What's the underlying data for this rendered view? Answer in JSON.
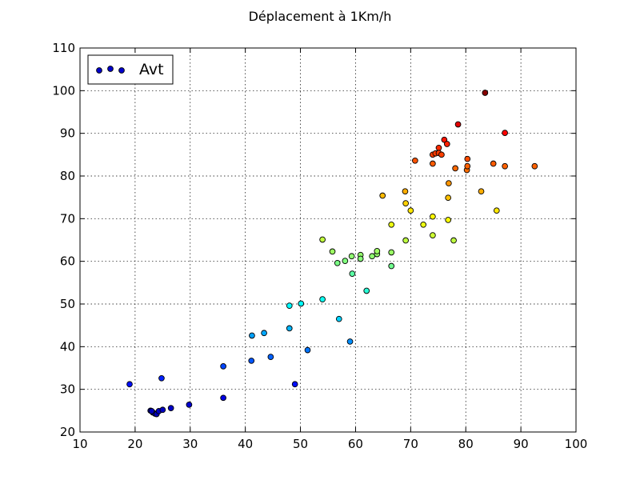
{
  "chart_data": {
    "type": "scatter",
    "title": "Déplacement à 1Km/h",
    "xlabel": "",
    "ylabel": "",
    "xlim": [
      10,
      100
    ],
    "ylim": [
      20,
      110
    ],
    "xticks": [
      10,
      20,
      30,
      40,
      50,
      60,
      70,
      80,
      90,
      100
    ],
    "yticks": [
      20,
      30,
      40,
      50,
      60,
      70,
      80,
      90,
      100,
      110
    ],
    "grid": true,
    "legend": {
      "placement": "top-left",
      "entries": [
        "Avt"
      ]
    },
    "colormap": "jet",
    "colormap_range": [
      20,
      100
    ],
    "series": [
      {
        "name": "Avt",
        "points": [
          [
            19.0,
            31.2
          ],
          [
            24.8,
            32.6
          ],
          [
            22.8,
            25.0
          ],
          [
            23.2,
            24.6
          ],
          [
            23.6,
            24.3
          ],
          [
            23.9,
            24.2
          ],
          [
            24.3,
            24.9
          ],
          [
            23.0,
            24.9
          ],
          [
            25.0,
            25.2
          ],
          [
            26.5,
            25.6
          ],
          [
            29.8,
            26.4
          ],
          [
            36.0,
            28.0
          ],
          [
            36.0,
            35.4
          ],
          [
            41.1,
            36.7
          ],
          [
            44.6,
            37.6
          ],
          [
            49.0,
            31.2
          ],
          [
            41.2,
            42.6
          ],
          [
            43.4,
            43.2
          ],
          [
            48.0,
            44.3
          ],
          [
            51.3,
            39.2
          ],
          [
            48.0,
            49.6
          ],
          [
            50.1,
            50.1
          ],
          [
            54.0,
            51.1
          ],
          [
            57.0,
            46.5
          ],
          [
            59.0,
            41.2
          ],
          [
            54.0,
            65.1
          ],
          [
            55.8,
            62.3
          ],
          [
            56.7,
            59.6
          ],
          [
            58.1,
            60.1
          ],
          [
            59.3,
            61.2
          ],
          [
            59.4,
            57.1
          ],
          [
            60.9,
            61.5
          ],
          [
            60.9,
            60.6
          ],
          [
            62.0,
            53.1
          ],
          [
            63.0,
            61.2
          ],
          [
            63.9,
            61.7
          ],
          [
            63.9,
            62.4
          ],
          [
            66.5,
            58.9
          ],
          [
            66.5,
            62.1
          ],
          [
            66.5,
            68.6
          ],
          [
            69.1,
            64.9
          ],
          [
            69.1,
            73.6
          ],
          [
            69.0,
            76.4
          ],
          [
            64.9,
            75.4
          ],
          [
            70.0,
            71.9
          ],
          [
            72.3,
            68.6
          ],
          [
            74.0,
            70.5
          ],
          [
            74.0,
            66.1
          ],
          [
            76.9,
            78.3
          ],
          [
            76.8,
            74.9
          ],
          [
            76.8,
            69.7
          ],
          [
            77.8,
            64.9
          ],
          [
            82.8,
            76.4
          ],
          [
            85.6,
            71.9
          ],
          [
            80.2,
            81.4
          ],
          [
            80.3,
            82.3
          ],
          [
            80.3,
            84.0
          ],
          [
            85.0,
            82.9
          ],
          [
            87.1,
            82.3
          ],
          [
            87.1,
            90.1
          ],
          [
            92.5,
            82.3
          ],
          [
            70.8,
            83.6
          ],
          [
            74.0,
            85.0
          ],
          [
            74.5,
            85.3
          ],
          [
            74.0,
            82.9
          ],
          [
            75.1,
            86.6
          ],
          [
            75.1,
            85.4
          ],
          [
            75.6,
            85.0
          ],
          [
            76.1,
            88.5
          ],
          [
            76.6,
            87.5
          ],
          [
            78.1,
            81.8
          ],
          [
            78.6,
            92.1
          ],
          [
            83.5,
            99.5
          ]
        ]
      }
    ]
  }
}
